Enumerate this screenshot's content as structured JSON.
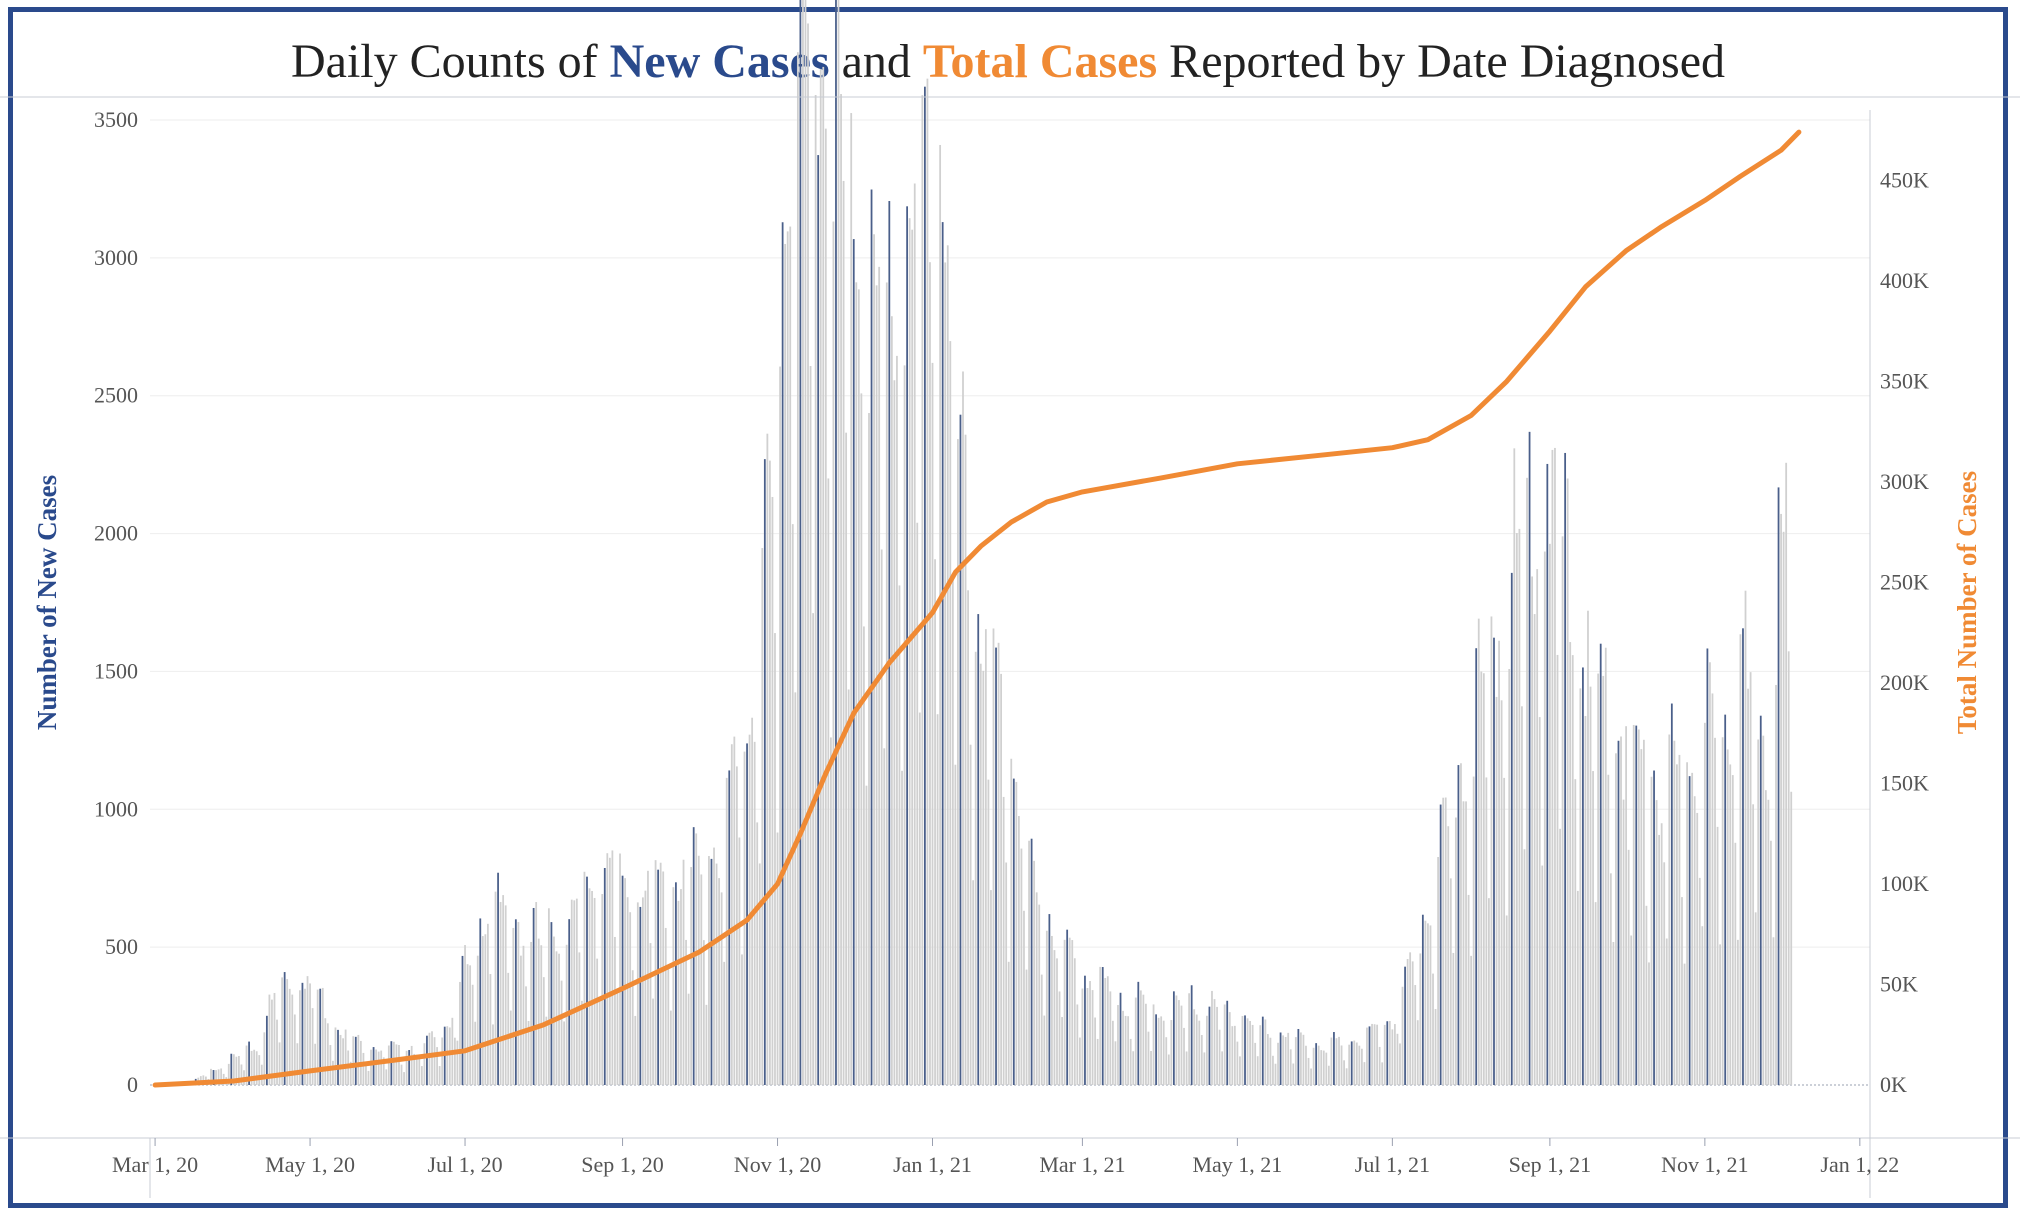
{
  "title": {
    "prefix": "Daily Counts of ",
    "series_a": "New Cases",
    "mid": " and ",
    "series_b": "Total Cases",
    "suffix": " Reported by Date Diagnosed"
  },
  "colors": {
    "frame": "#2a4a8c",
    "new_cases_highlight": "#4a5f8a",
    "new_cases_bar": "#d0d0d0",
    "total_cases_line": "#f08a34",
    "grid": "#eeeeee"
  },
  "chart_data": {
    "type": "bar+line",
    "ylabel": "Number of New Cases",
    "y2label": "Total Number of Cases",
    "xlabel": "",
    "x_range": [
      "2020-02-28",
      "2022-01-05"
    ],
    "ylim": [
      0,
      3500
    ],
    "y2lim": [
      0,
      480000
    ],
    "y_ticks": [
      "0",
      "500",
      "1000",
      "1500",
      "2000",
      "2500",
      "3000",
      "3500"
    ],
    "y2_ticks": [
      "0K",
      "50K",
      "100K",
      "150K",
      "200K",
      "250K",
      "300K",
      "350K",
      "400K",
      "450K"
    ],
    "x_ticks": [
      "Mar 1, 20",
      "May 1, 20",
      "Jul 1, 20",
      "Sep 1, 20",
      "Nov 1, 20",
      "Jan 1, 21",
      "Mar 1, 21",
      "May 1, 21",
      "Jul 1, 21",
      "Sep 1, 21",
      "Nov 1, 21",
      "Jan 1, 22"
    ],
    "new_cases": {
      "name": "New Cases",
      "anchors": [
        [
          "2020-03-01",
          0
        ],
        [
          "2020-03-15",
          5
        ],
        [
          "2020-03-22",
          40
        ],
        [
          "2020-04-01",
          80
        ],
        [
          "2020-04-10",
          120
        ],
        [
          "2020-04-18",
          300
        ],
        [
          "2020-04-25",
          340
        ],
        [
          "2020-05-01",
          330
        ],
        [
          "2020-05-10",
          200
        ],
        [
          "2020-05-20",
          130
        ],
        [
          "2020-06-01",
          110
        ],
        [
          "2020-06-15",
          120
        ],
        [
          "2020-06-25",
          200
        ],
        [
          "2020-07-01",
          350
        ],
        [
          "2020-07-10",
          550
        ],
        [
          "2020-07-20",
          500
        ],
        [
          "2020-08-01",
          450
        ],
        [
          "2020-08-15",
          550
        ],
        [
          "2020-08-25",
          700
        ],
        [
          "2020-09-01",
          600
        ],
        [
          "2020-09-15",
          600
        ],
        [
          "2020-10-01",
          650
        ],
        [
          "2020-10-10",
          800
        ],
        [
          "2020-10-20",
          1100
        ],
        [
          "2020-10-27",
          1600
        ],
        [
          "2020-11-01",
          2100
        ],
        [
          "2020-11-05",
          2900
        ],
        [
          "2020-11-12",
          3300
        ],
        [
          "2020-11-20",
          3200
        ],
        [
          "2020-11-28",
          2800
        ],
        [
          "2020-12-05",
          2500
        ],
        [
          "2020-12-12",
          2300
        ],
        [
          "2020-12-20",
          2500
        ],
        [
          "2020-12-28",
          2600
        ],
        [
          "2021-01-04",
          2900
        ],
        [
          "2021-01-10",
          2000
        ],
        [
          "2021-01-18",
          1500
        ],
        [
          "2021-01-25",
          1200
        ],
        [
          "2021-02-01",
          1000
        ],
        [
          "2021-02-10",
          600
        ],
        [
          "2021-02-20",
          450
        ],
        [
          "2021-03-01",
          350
        ],
        [
          "2021-03-15",
          270
        ],
        [
          "2021-04-01",
          230
        ],
        [
          "2021-04-15",
          250
        ],
        [
          "2021-05-01",
          220
        ],
        [
          "2021-05-15",
          160
        ],
        [
          "2021-06-01",
          130
        ],
        [
          "2021-06-15",
          130
        ],
        [
          "2021-07-01",
          200
        ],
        [
          "2021-07-10",
          400
        ],
        [
          "2021-07-20",
          700
        ],
        [
          "2021-08-01",
          1100
        ],
        [
          "2021-08-15",
          1500
        ],
        [
          "2021-08-25",
          1800
        ],
        [
          "2021-09-01",
          1850
        ],
        [
          "2021-09-08",
          1600
        ],
        [
          "2021-09-15",
          1300
        ],
        [
          "2021-10-01",
          1050
        ],
        [
          "2021-10-15",
          900
        ],
        [
          "2021-10-25",
          1000
        ],
        [
          "2021-11-05",
          1100
        ],
        [
          "2021-11-15",
          1300
        ],
        [
          "2021-11-25",
          1000
        ],
        [
          "2021-12-01",
          1600
        ],
        [
          "2021-12-05",
          2000
        ]
      ]
    },
    "total_cases": {
      "name": "Total Cases",
      "points": [
        [
          "2020-03-01",
          0
        ],
        [
          "2020-04-01",
          2000
        ],
        [
          "2020-05-01",
          7000
        ],
        [
          "2020-06-01",
          12000
        ],
        [
          "2020-07-01",
          17000
        ],
        [
          "2020-08-01",
          30000
        ],
        [
          "2020-09-01",
          48000
        ],
        [
          "2020-10-01",
          66000
        ],
        [
          "2020-10-20",
          82000
        ],
        [
          "2020-11-01",
          100000
        ],
        [
          "2020-11-10",
          125000
        ],
        [
          "2020-11-20",
          155000
        ],
        [
          "2020-12-01",
          185000
        ],
        [
          "2020-12-15",
          210000
        ],
        [
          "2021-01-01",
          235000
        ],
        [
          "2021-01-10",
          255000
        ],
        [
          "2021-01-20",
          268000
        ],
        [
          "2021-02-01",
          280000
        ],
        [
          "2021-02-15",
          290000
        ],
        [
          "2021-03-01",
          295000
        ],
        [
          "2021-04-01",
          302000
        ],
        [
          "2021-05-01",
          309000
        ],
        [
          "2021-06-01",
          313000
        ],
        [
          "2021-07-01",
          317000
        ],
        [
          "2021-07-15",
          321000
        ],
        [
          "2021-08-01",
          333000
        ],
        [
          "2021-08-15",
          350000
        ],
        [
          "2021-09-01",
          375000
        ],
        [
          "2021-09-15",
          397000
        ],
        [
          "2021-10-01",
          415000
        ],
        [
          "2021-10-15",
          427000
        ],
        [
          "2021-11-01",
          440000
        ],
        [
          "2021-11-15",
          452000
        ],
        [
          "2021-12-01",
          465000
        ],
        [
          "2021-12-08",
          474000
        ]
      ]
    }
  }
}
